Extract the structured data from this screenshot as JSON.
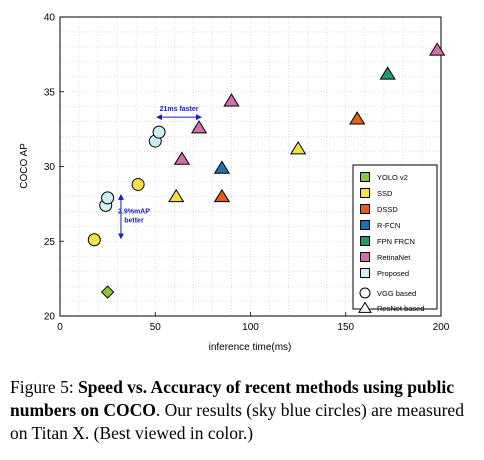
{
  "chart_data": {
    "type": "scatter",
    "xlabel": "inference time(ms)",
    "ylabel": "COCO AP",
    "xlim": [
      0,
      200
    ],
    "ylim": [
      20,
      40
    ],
    "xticks": [
      "0",
      "50",
      "100",
      "150",
      "200"
    ],
    "yticks": [
      "20",
      "25",
      "30",
      "35",
      "40"
    ],
    "grid": true,
    "legend_position": "lower-right",
    "series": [
      {
        "name": "YOLO v2",
        "color": "#8cc63f",
        "points": [
          {
            "x": 25,
            "y": 21.6,
            "shape": "diamond"
          }
        ]
      },
      {
        "name": "SSD",
        "color": "#f2e14c",
        "points": [
          {
            "x": 18,
            "y": 25.1,
            "shape": "circle"
          },
          {
            "x": 41,
            "y": 28.8,
            "shape": "circle"
          },
          {
            "x": 61,
            "y": 28.0,
            "shape": "triangle"
          },
          {
            "x": 125,
            "y": 31.2,
            "shape": "triangle"
          }
        ]
      },
      {
        "name": "DSSD",
        "color": "#e0601c",
        "points": [
          {
            "x": 85,
            "y": 28.0,
            "shape": "triangle"
          },
          {
            "x": 156,
            "y": 33.2,
            "shape": "triangle"
          }
        ]
      },
      {
        "name": "R-FCN",
        "color": "#1f6fb5",
        "points": [
          {
            "x": 85,
            "y": 29.9,
            "shape": "triangle"
          }
        ]
      },
      {
        "name": "FPN FRCN",
        "color": "#1f9a6a",
        "points": [
          {
            "x": 172,
            "y": 36.2,
            "shape": "triangle"
          }
        ]
      },
      {
        "name": "RetinaNet",
        "color": "#d36fa8",
        "points": [
          {
            "x": 64,
            "y": 30.5,
            "shape": "triangle"
          },
          {
            "x": 73,
            "y": 32.6,
            "shape": "triangle"
          },
          {
            "x": 90,
            "y": 34.4,
            "shape": "triangle"
          },
          {
            "x": 198,
            "y": 37.8,
            "shape": "triangle"
          }
        ]
      },
      {
        "name": "Proposed",
        "color": "#cdeff3",
        "points": [
          {
            "x": 24,
            "y": 27.4,
            "shape": "circle"
          },
          {
            "x": 25,
            "y": 27.9,
            "shape": "circle"
          },
          {
            "x": 50,
            "y": 31.7,
            "shape": "circle"
          },
          {
            "x": 52,
            "y": 32.3,
            "shape": "circle"
          }
        ]
      }
    ],
    "shape_legend": [
      {
        "label": "VGG based",
        "shape": "circle"
      },
      {
        "label": "ResNet based",
        "shape": "triangle"
      }
    ],
    "annotations": [
      {
        "text": "21ms faster",
        "color": "#1a1acc",
        "arrow": {
          "from": {
            "x": 51,
            "y": 33.3
          },
          "to": {
            "x": 74,
            "y": 33.3
          },
          "double": true
        }
      },
      {
        "lines": [
          "2.9%mAP",
          "better"
        ],
        "color": "#1a1acc",
        "arrow": {
          "from": {
            "x": 32,
            "y": 25.2
          },
          "to": {
            "x": 32,
            "y": 28.1
          },
          "double": true
        }
      }
    ]
  },
  "caption": {
    "prefix": "Figure 5: ",
    "bold": "Speed vs. Accuracy of recent methods using public numbers on COCO",
    "rest": ". Our results (sky blue circles) are measured on Titan X. (Best viewed in color.)"
  }
}
